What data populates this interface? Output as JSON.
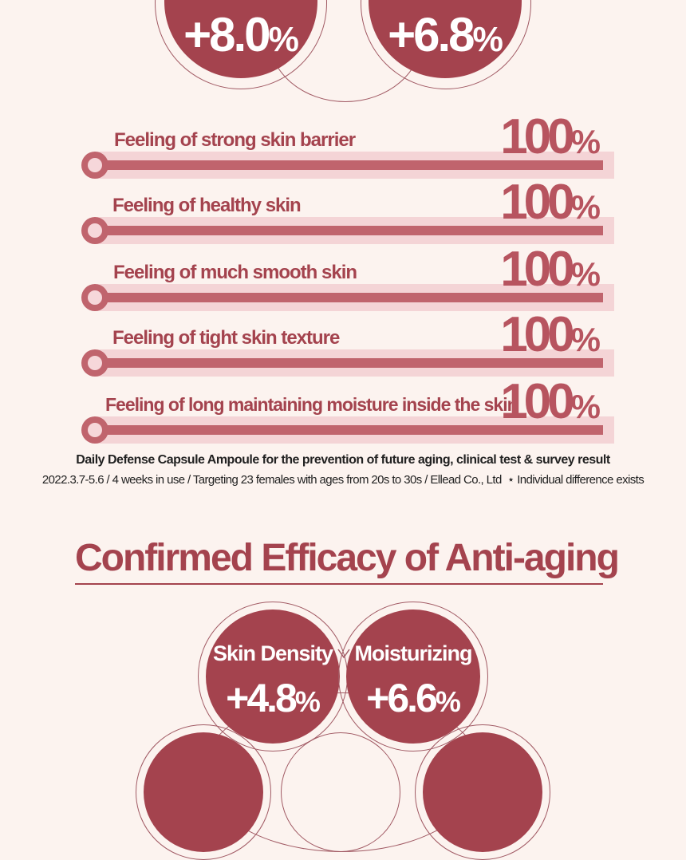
{
  "top_circles": [
    {
      "value": "+8.0",
      "unit": "%"
    },
    {
      "value": "+6.8",
      "unit": "%"
    }
  ],
  "survey": {
    "items": [
      {
        "label": "Feeling of strong skin barrier",
        "value": "100",
        "unit": "%",
        "level_percent": 100
      },
      {
        "label": "Feeling of healthy skin",
        "value": "100",
        "unit": "%",
        "level_percent": 100
      },
      {
        "label": "Feeling of much smooth skin",
        "value": "100",
        "unit": "%",
        "level_percent": 100
      },
      {
        "label": "Feeling of tight skin texture",
        "value": "100",
        "unit": "%",
        "level_percent": 100
      },
      {
        "label": "Feeling of long maintaining moisture inside the skin",
        "value": "100",
        "unit": "%",
        "level_percent": 100
      }
    ],
    "note_title": "Daily Defense Capsule Ampoule for the prevention of future aging, clinical test & survey result",
    "note_detail": "2022.3.7-5.6 / 4 weeks in use / Targeting 23 females with ages from 20s to 30s / Ellead Co., Ltd",
    "note_disclaimer": "⋆ Individual difference exists"
  },
  "anti_aging": {
    "title": "Confirmed Efficacy of Anti-aging",
    "circles": [
      {
        "label": "Skin Density",
        "value": "+4.8",
        "unit": "%"
      },
      {
        "label": "Moisturizing",
        "value": "+6.6",
        "unit": "%"
      }
    ]
  },
  "colors": {
    "background": "#fcf3ef",
    "accent": "#a4434e",
    "bar_track": "#f4d4d6",
    "bar_fill": "#c0646d"
  }
}
